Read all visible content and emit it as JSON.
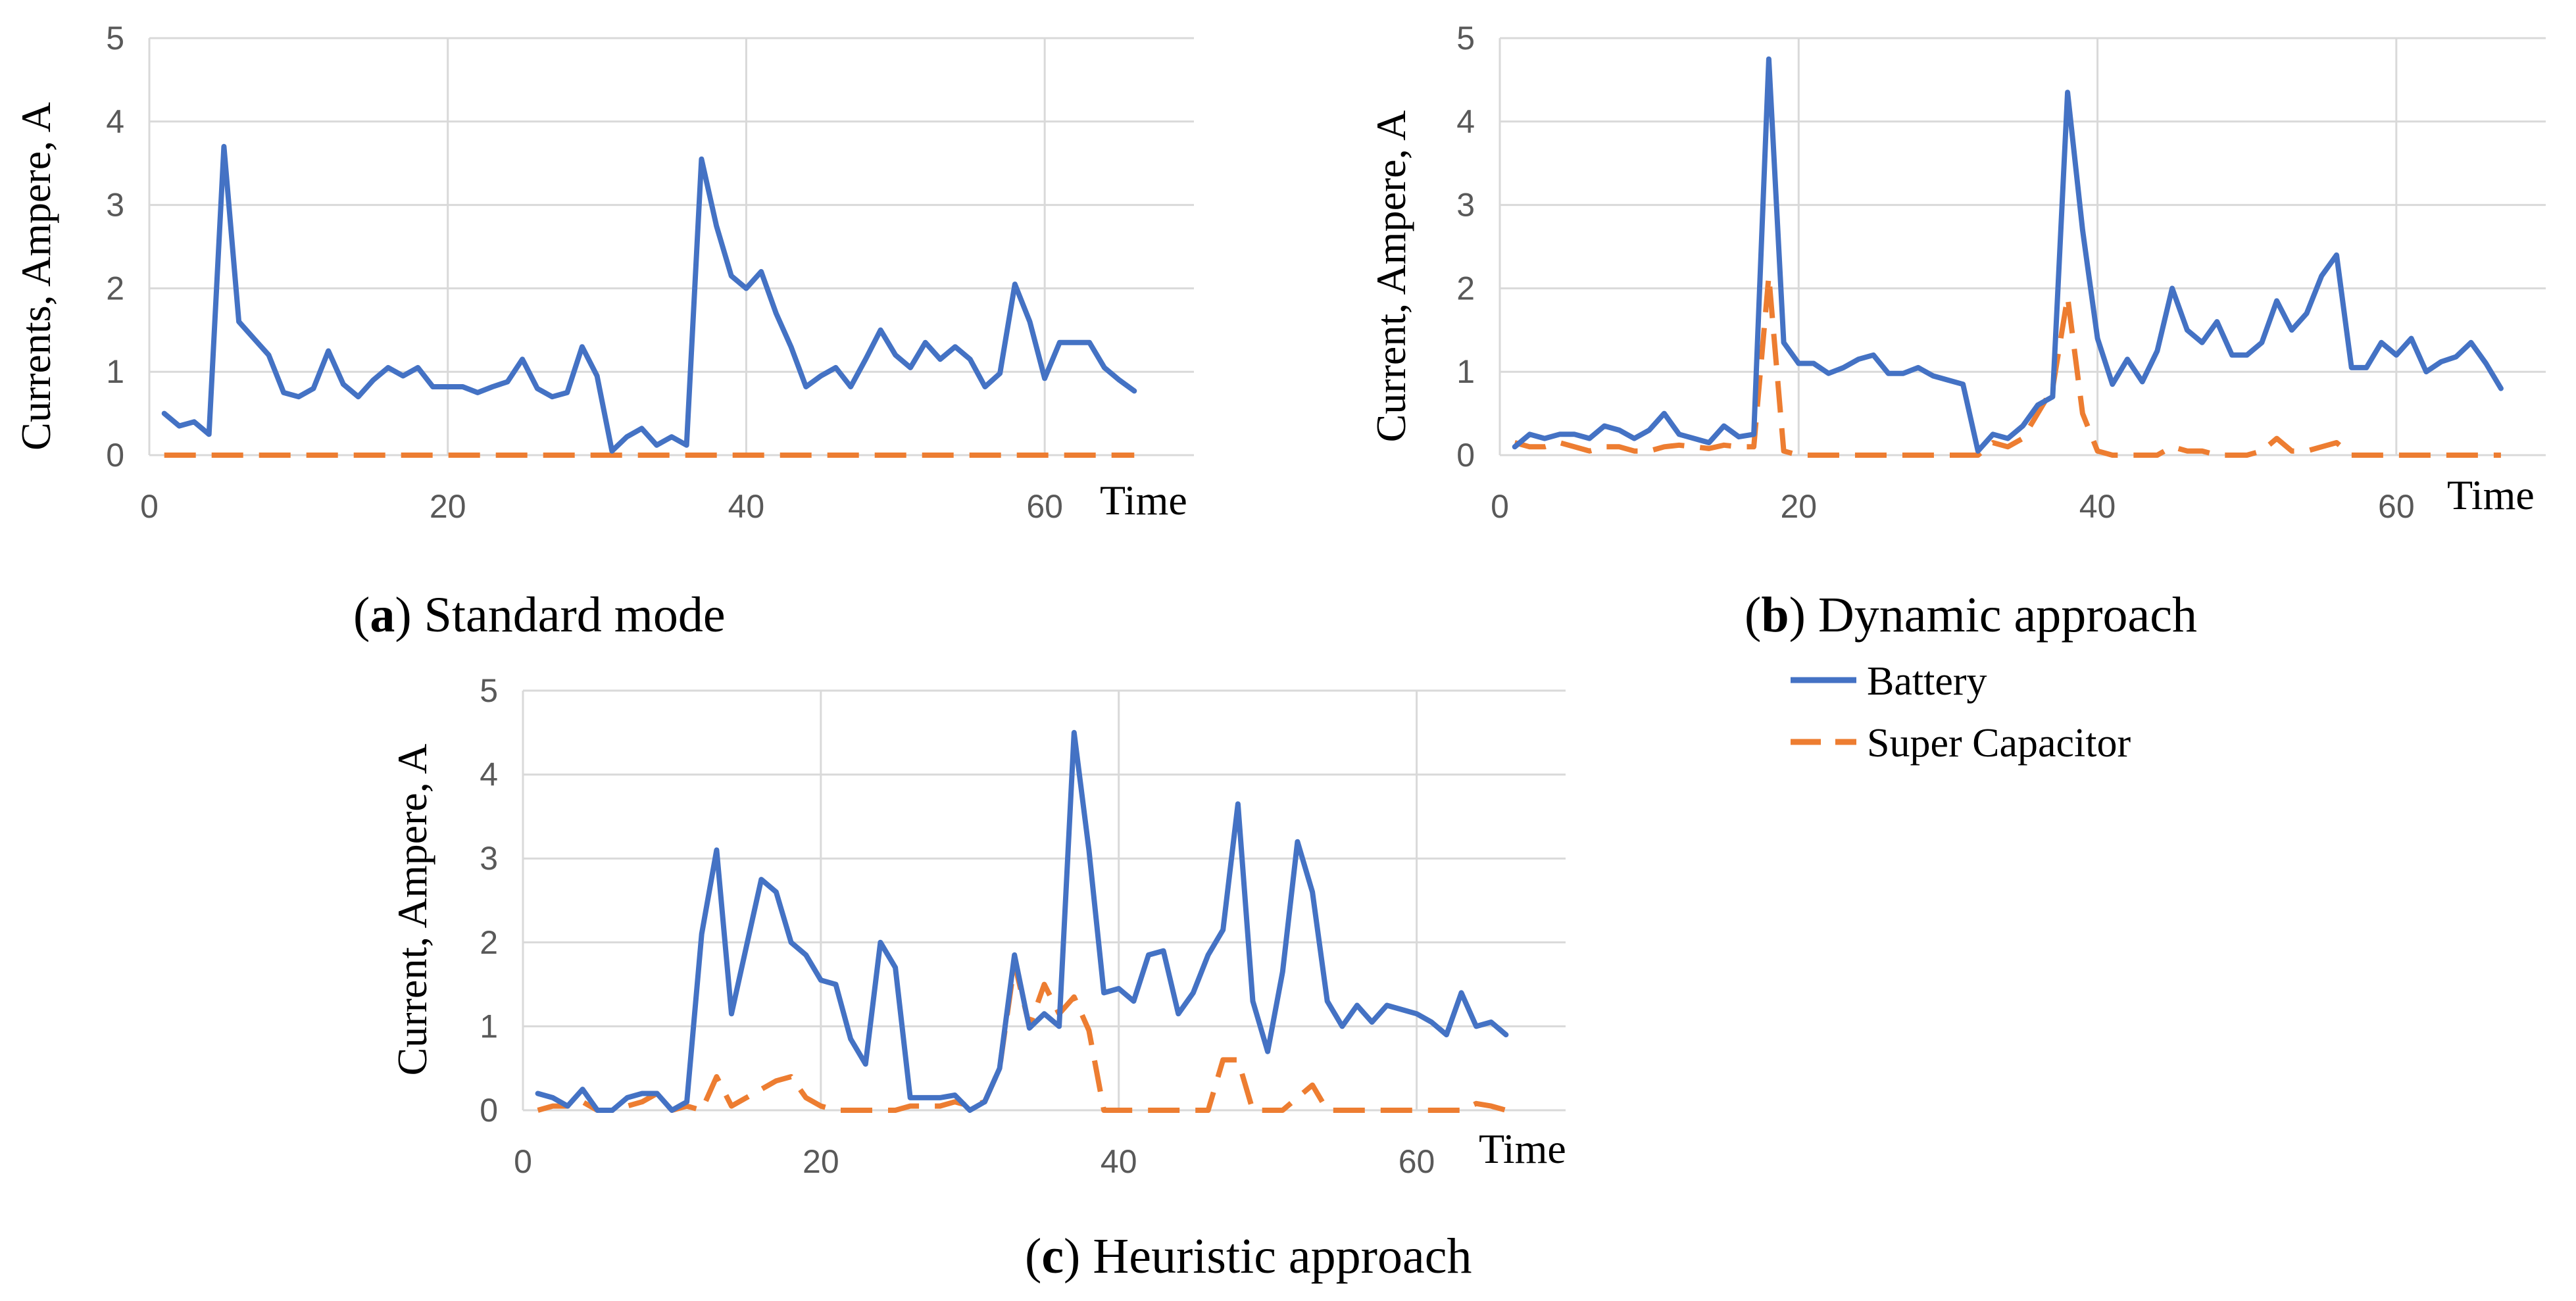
{
  "colors": {
    "battery": "#4472C4",
    "super_capacitor": "#ED7D31",
    "grid": "#D9D9D9",
    "tick": "#595959"
  },
  "legend": {
    "battery": "Battery",
    "super_capacitor": "Super Capacitor"
  },
  "chart_data": [
    {
      "id": "a",
      "type": "line",
      "caption_letter": "a",
      "caption_text": ") Standard mode",
      "caption_open": "(",
      "ylabel": "Currents, Ampere, A",
      "xlabel": "Time",
      "xlim": [
        0,
        70
      ],
      "ylim": [
        0,
        5
      ],
      "x_ticks": [
        0,
        20,
        40,
        60
      ],
      "y_ticks": [
        0,
        1,
        2,
        3,
        4,
        5
      ],
      "series": [
        {
          "name": "Battery",
          "x_start": 1,
          "values": [
            0.5,
            0.35,
            0.4,
            0.25,
            3.7,
            1.6,
            1.4,
            1.2,
            0.75,
            0.7,
            0.8,
            1.25,
            0.85,
            0.7,
            0.9,
            1.05,
            0.95,
            1.05,
            0.82,
            0.82,
            0.82,
            0.75,
            0.82,
            0.88,
            1.15,
            0.8,
            0.7,
            0.75,
            1.3,
            0.95,
            0.05,
            0.22,
            0.32,
            0.12,
            0.22,
            0.12,
            3.55,
            2.75,
            2.15,
            2.0,
            2.2,
            1.7,
            1.3,
            0.82,
            0.95,
            1.05,
            0.82,
            1.15,
            1.5,
            1.2,
            1.05,
            1.35,
            1.15,
            1.3,
            1.15,
            0.82,
            0.98,
            2.05,
            1.6,
            0.92,
            1.35,
            1.35,
            1.35,
            1.05,
            0.9,
            0.77
          ]
        },
        {
          "name": "Super Capacitor",
          "x_start": 1,
          "values": [
            0,
            0,
            0,
            0,
            0,
            0,
            0,
            0,
            0,
            0,
            0,
            0,
            0,
            0,
            0,
            0,
            0,
            0,
            0,
            0,
            0,
            0,
            0,
            0,
            0,
            0,
            0,
            0,
            0,
            0,
            0,
            0,
            0,
            0,
            0,
            0,
            0,
            0,
            0,
            0,
            0,
            0,
            0,
            0,
            0,
            0,
            0,
            0,
            0,
            0,
            0,
            0,
            0,
            0,
            0,
            0,
            0,
            0,
            0,
            0,
            0,
            0,
            0,
            0,
            0,
            0
          ]
        }
      ]
    },
    {
      "id": "b",
      "type": "line",
      "caption_letter": "b",
      "caption_text": ") Dynamic approach",
      "caption_open": "(",
      "ylabel": "Current, Ampere, A",
      "xlabel": "Time",
      "xlim": [
        0,
        70
      ],
      "ylim": [
        0,
        5
      ],
      "x_ticks": [
        0,
        20,
        40,
        60
      ],
      "y_ticks": [
        0,
        1,
        2,
        3,
        4,
        5
      ],
      "series": [
        {
          "name": "Battery",
          "x_start": 1,
          "values": [
            0.1,
            0.25,
            0.2,
            0.25,
            0.25,
            0.2,
            0.35,
            0.3,
            0.2,
            0.3,
            0.5,
            0.25,
            0.2,
            0.15,
            0.35,
            0.22,
            0.25,
            4.75,
            1.35,
            1.1,
            1.1,
            0.98,
            1.05,
            1.15,
            1.2,
            0.98,
            0.98,
            1.05,
            0.95,
            0.9,
            0.85,
            0.05,
            0.25,
            0.2,
            0.35,
            0.6,
            0.7,
            4.35,
            2.7,
            1.4,
            0.85,
            1.15,
            0.88,
            1.25,
            2.0,
            1.5,
            1.35,
            1.6,
            1.2,
            1.2,
            1.35,
            1.85,
            1.5,
            1.7,
            2.15,
            2.4,
            1.05,
            1.05,
            1.35,
            1.2,
            1.4,
            1.0,
            1.12,
            1.18,
            1.35,
            1.1,
            0.8
          ]
        },
        {
          "name": "Super Capacitor",
          "x_start": 1,
          "values": [
            0.15,
            0.1,
            0.1,
            0.15,
            0.1,
            0.05,
            0.1,
            0.1,
            0.05,
            0.05,
            0.1,
            0.12,
            0.1,
            0.08,
            0.12,
            0.1,
            0.1,
            2.15,
            0.05,
            0,
            0,
            0,
            0,
            0,
            0,
            0,
            0,
            0,
            0,
            0,
            0,
            0,
            0.15,
            0.1,
            0.2,
            0.5,
            0.8,
            1.9,
            0.5,
            0.05,
            0,
            0,
            0,
            0,
            0.1,
            0.05,
            0.05,
            0,
            0,
            0,
            0.05,
            0.2,
            0.05,
            0.05,
            0.1,
            0.15,
            0,
            0,
            0,
            0,
            0,
            0,
            0,
            0,
            0,
            0,
            0
          ]
        }
      ]
    },
    {
      "id": "c",
      "type": "line",
      "caption_letter": "c",
      "caption_text": ") Heuristic approach",
      "caption_open": "(",
      "ylabel": "Current, Ampere, A",
      "xlabel": "Time",
      "xlim": [
        0,
        70
      ],
      "ylim": [
        0,
        5
      ],
      "x_ticks": [
        0,
        20,
        40,
        60
      ],
      "y_ticks": [
        0,
        1,
        2,
        3,
        4,
        5
      ],
      "series": [
        {
          "name": "Battery",
          "x_start": 1,
          "values": [
            0.2,
            0.15,
            0.05,
            0.25,
            0,
            0,
            0.15,
            0.2,
            0.2,
            0,
            0.1,
            2.1,
            3.1,
            1.15,
            1.95,
            2.75,
            2.6,
            2.0,
            1.85,
            1.55,
            1.5,
            0.85,
            0.55,
            2.0,
            1.7,
            0.15,
            0.15,
            0.15,
            0.18,
            0,
            0.1,
            0.5,
            1.85,
            0.98,
            1.15,
            1.0,
            4.5,
            3.1,
            1.4,
            1.45,
            1.3,
            1.85,
            1.9,
            1.15,
            1.4,
            1.85,
            2.15,
            3.65,
            1.3,
            0.7,
            1.65,
            3.2,
            2.6,
            1.3,
            1.0,
            1.25,
            1.05,
            1.25,
            1.2,
            1.15,
            1.05,
            0.9,
            1.4,
            1.0,
            1.05,
            0.9
          ]
        },
        {
          "name": "Super Capacitor",
          "x_start": 1,
          "values": [
            0,
            0.05,
            0.05,
            0.1,
            0,
            0,
            0.05,
            0.1,
            0.2,
            0,
            0.05,
            0,
            0.4,
            0.05,
            0.15,
            0.25,
            0.35,
            0.4,
            0.15,
            0.05,
            0,
            0,
            0,
            0,
            0,
            0.05,
            0.05,
            0.05,
            0.1,
            0.05,
            0.1,
            0.5,
            1.75,
            1.0,
            1.5,
            1.15,
            1.35,
            0.95,
            0,
            0,
            0,
            0,
            0,
            0,
            0,
            0,
            0.6,
            0.6,
            0,
            0,
            0,
            0.15,
            0.3,
            0,
            0,
            0,
            0,
            0,
            0,
            0,
            0,
            0,
            0,
            0.08,
            0.05,
            0
          ]
        }
      ]
    }
  ]
}
